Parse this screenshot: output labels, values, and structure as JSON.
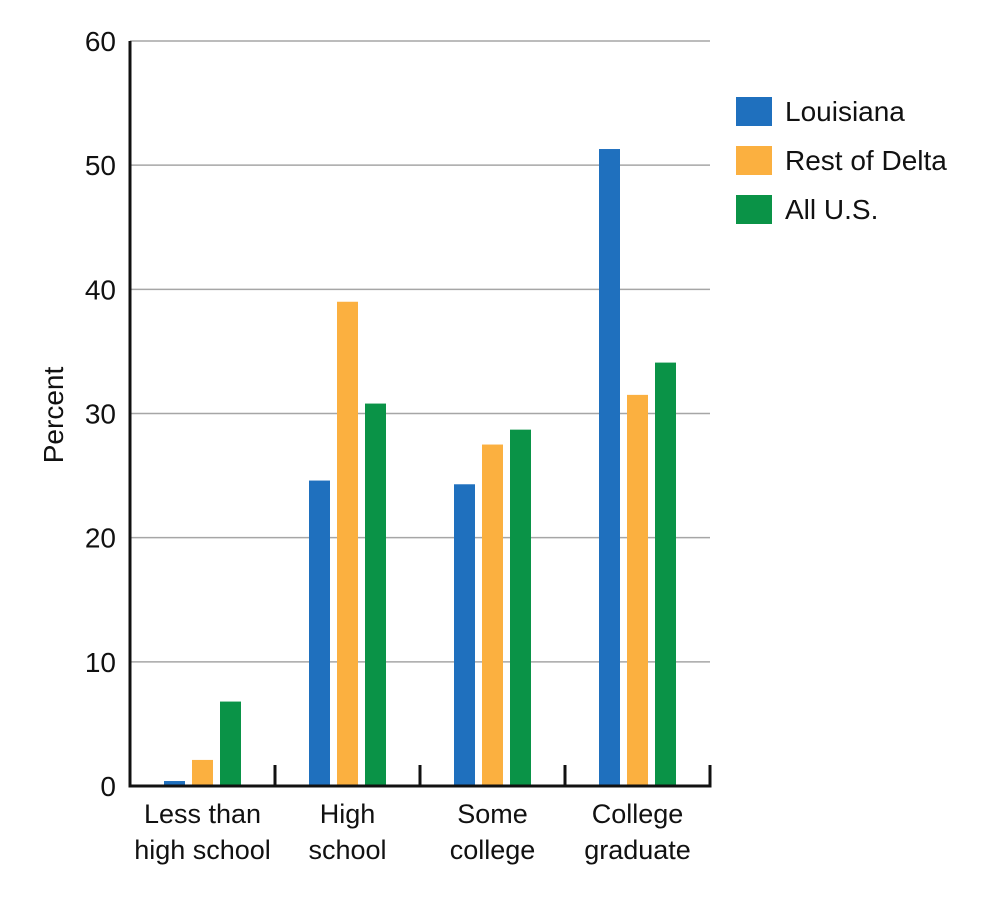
{
  "chart_data": {
    "type": "bar",
    "title": "",
    "xlabel": "",
    "ylabel": "Percent",
    "ylim": [
      0,
      60
    ],
    "yticks": [
      0,
      10,
      20,
      30,
      40,
      50,
      60
    ],
    "grid": true,
    "legend_position": "right",
    "categories": [
      [
        "Less than",
        "high school"
      ],
      [
        "High",
        "school"
      ],
      [
        "Some",
        "college"
      ],
      [
        "College",
        "graduate"
      ]
    ],
    "series": [
      {
        "name": "Louisiana",
        "color": "#1f70be",
        "values": [
          0.4,
          24.6,
          24.3,
          51.3
        ]
      },
      {
        "name": "Rest of Delta",
        "color": "#fbb040",
        "values": [
          2.1,
          39.0,
          27.5,
          31.5
        ]
      },
      {
        "name": "All U.S.",
        "color": "#0a9347",
        "values": [
          6.8,
          30.8,
          28.7,
          34.1
        ]
      }
    ]
  }
}
